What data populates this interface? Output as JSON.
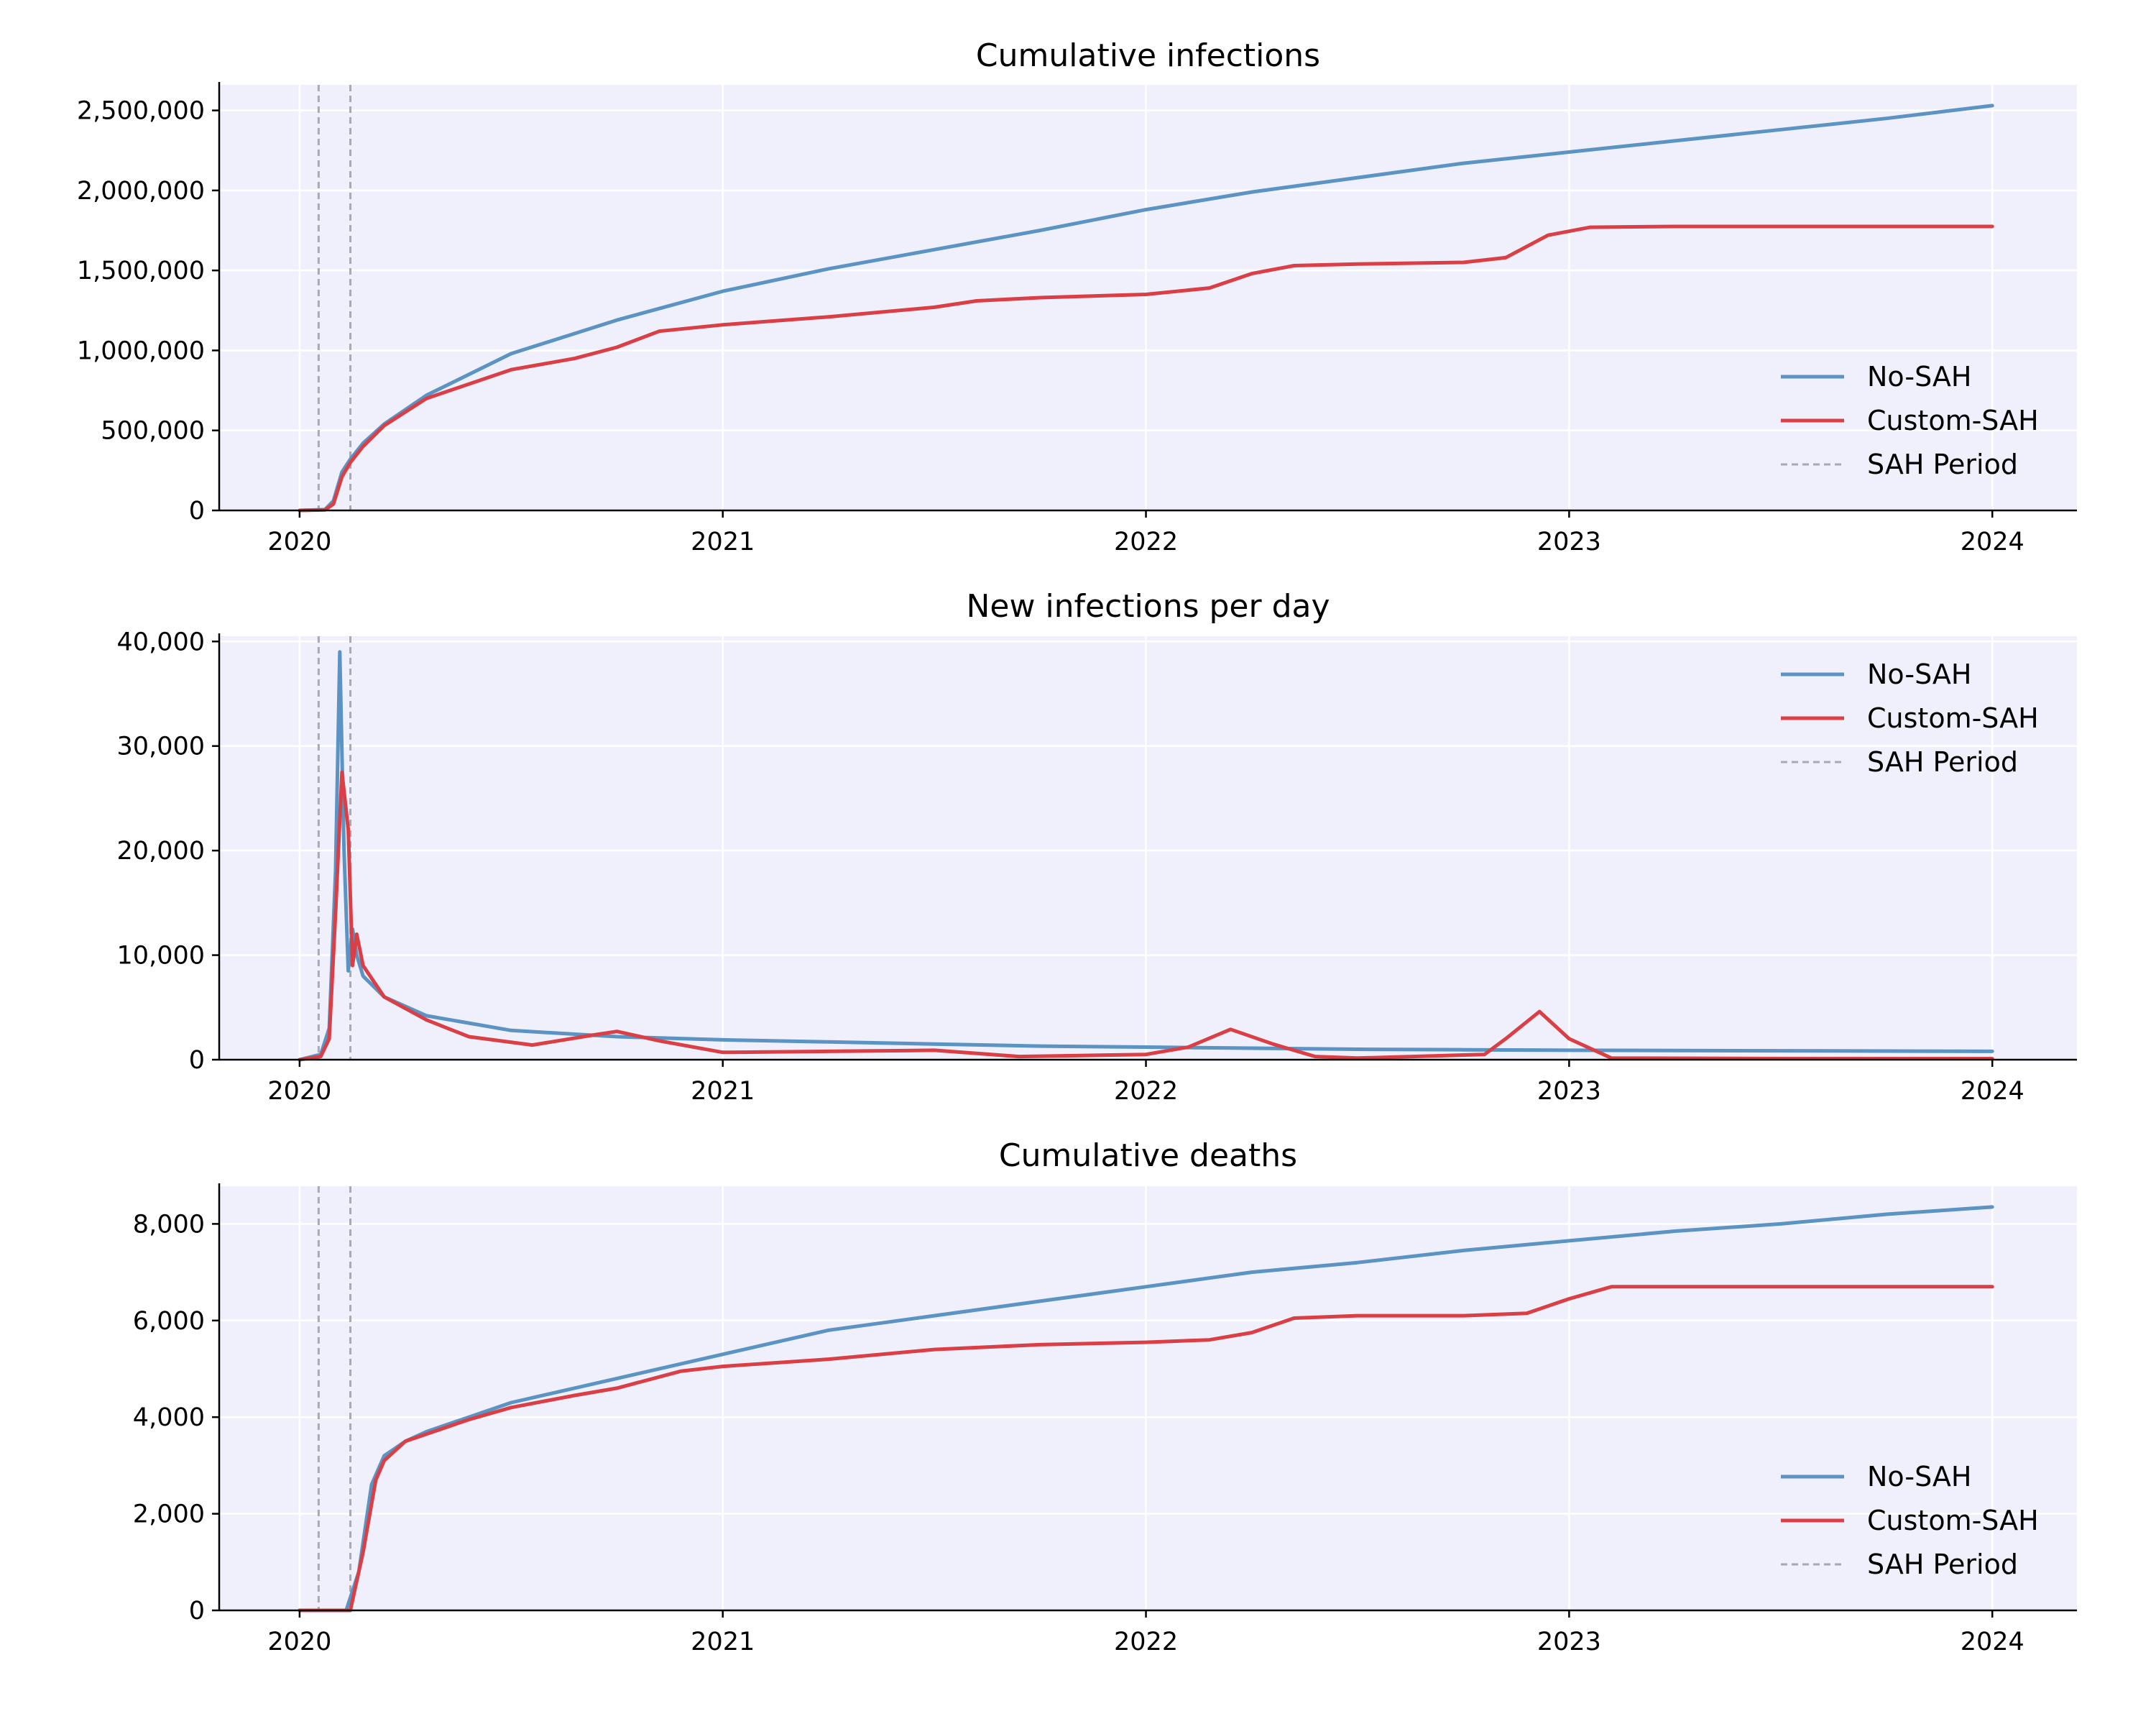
{
  "figure": {
    "background": "#ffffff",
    "panel_background": "#f0f0fc",
    "grid_color": "#ffffff",
    "colors": {
      "No-SAH": "#5b93c2",
      "Custom-SAH": "#da3f46",
      "SAH Period": "#a9a9b4"
    }
  },
  "chart_data": [
    {
      "type": "line",
      "title": "Cumulative infections",
      "xlabel": "",
      "ylabel": "",
      "x_ticks": [
        2020,
        2021,
        2022,
        2023,
        2024
      ],
      "x_tick_labels": [
        "2020",
        "2021",
        "2022",
        "2023",
        "2024"
      ],
      "y_ticks": [
        0,
        500000,
        1000000,
        1500000,
        2000000,
        2500000
      ],
      "y_tick_labels": [
        "0",
        "500,000",
        "1,000,000",
        "1,500,000",
        "2,000,000",
        "2,500,000"
      ],
      "xlim": [
        2019.81,
        2024.2
      ],
      "ylim": [
        0,
        2660000
      ],
      "grid": true,
      "legend_position": "lower-right",
      "sah_period": [
        2020.045,
        2020.12
      ],
      "series": [
        {
          "name": "No-SAH",
          "x": [
            2020.0,
            2020.06,
            2020.08,
            2020.1,
            2020.12,
            2020.15,
            2020.2,
            2020.3,
            2020.5,
            2020.75,
            2021.0,
            2021.25,
            2021.5,
            2021.75,
            2022.0,
            2022.25,
            2022.5,
            2022.75,
            2023.0,
            2023.25,
            2023.5,
            2023.75,
            2024.0
          ],
          "y": [
            0,
            5000,
            60000,
            240000,
            320000,
            420000,
            540000,
            720000,
            980000,
            1190000,
            1370000,
            1510000,
            1630000,
            1750000,
            1880000,
            1990000,
            2080000,
            2170000,
            2240000,
            2310000,
            2380000,
            2450000,
            2530000
          ]
        },
        {
          "name": "Custom-SAH",
          "x": [
            2020.0,
            2020.06,
            2020.08,
            2020.1,
            2020.12,
            2020.15,
            2020.2,
            2020.3,
            2020.5,
            2020.65,
            2020.75,
            2020.85,
            2021.0,
            2021.25,
            2021.5,
            2021.6,
            2021.75,
            2022.0,
            2022.15,
            2022.25,
            2022.35,
            2022.5,
            2022.75,
            2022.85,
            2022.95,
            2023.05,
            2023.25,
            2023.5,
            2024.0
          ],
          "y": [
            0,
            3000,
            40000,
            210000,
            300000,
            400000,
            530000,
            700000,
            880000,
            950000,
            1020000,
            1120000,
            1160000,
            1210000,
            1270000,
            1310000,
            1330000,
            1350000,
            1390000,
            1480000,
            1530000,
            1540000,
            1550000,
            1580000,
            1720000,
            1770000,
            1775000,
            1775000,
            1775000
          ]
        }
      ]
    },
    {
      "type": "line",
      "title": "New infections per day",
      "xlabel": "",
      "ylabel": "",
      "x_ticks": [
        2020,
        2021,
        2022,
        2023,
        2024
      ],
      "x_tick_labels": [
        "2020",
        "2021",
        "2022",
        "2023",
        "2024"
      ],
      "y_ticks": [
        0,
        10000,
        20000,
        30000,
        40000
      ],
      "y_tick_labels": [
        "0",
        "10,000",
        "20,000",
        "30,000",
        "40,000"
      ],
      "xlim": [
        2019.81,
        2024.2
      ],
      "ylim": [
        0,
        40500
      ],
      "grid": true,
      "legend_position": "upper-right",
      "sah_period": [
        2020.045,
        2020.12
      ],
      "series": [
        {
          "name": "No-SAH",
          "x": [
            2020.0,
            2020.05,
            2020.07,
            2020.085,
            2020.095,
            2020.105,
            2020.115,
            2020.125,
            2020.135,
            2020.15,
            2020.2,
            2020.3,
            2020.5,
            2020.75,
            2021.0,
            2021.25,
            2021.5,
            2021.75,
            2022.0,
            2022.25,
            2022.5,
            2022.75,
            2023.0,
            2023.5,
            2024.0
          ],
          "y": [
            0,
            500,
            3000,
            18000,
            39000,
            20000,
            8500,
            12500,
            10000,
            8000,
            6000,
            4200,
            2800,
            2200,
            1900,
            1700,
            1500,
            1300,
            1200,
            1100,
            1000,
            950,
            900,
            850,
            800
          ]
        },
        {
          "name": "Custom-SAH",
          "x": [
            2020.0,
            2020.05,
            2020.07,
            2020.085,
            2020.1,
            2020.115,
            2020.125,
            2020.135,
            2020.15,
            2020.2,
            2020.3,
            2020.4,
            2020.55,
            2020.7,
            2020.75,
            2020.85,
            2021.0,
            2021.25,
            2021.5,
            2021.7,
            2022.0,
            2022.1,
            2022.2,
            2022.3,
            2022.4,
            2022.5,
            2022.8,
            2022.85,
            2022.93,
            2023.0,
            2023.1,
            2023.5,
            2024.0
          ],
          "y": [
            0,
            300,
            2000,
            14000,
            27500,
            22000,
            9000,
            12000,
            9000,
            6000,
            3800,
            2200,
            1400,
            2400,
            2700,
            1800,
            700,
            800,
            900,
            300,
            500,
            1200,
            2900,
            1500,
            300,
            150,
            500,
            2000,
            4600,
            2000,
            150,
            100,
            100
          ]
        }
      ]
    },
    {
      "type": "line",
      "title": "Cumulative deaths",
      "xlabel": "",
      "ylabel": "",
      "x_ticks": [
        2020,
        2021,
        2022,
        2023,
        2024
      ],
      "x_tick_labels": [
        "2020",
        "2021",
        "2022",
        "2023",
        "2024"
      ],
      "y_ticks": [
        0,
        2000,
        4000,
        6000,
        8000
      ],
      "y_tick_labels": [
        "0",
        "2,000",
        "4,000",
        "6,000",
        "8,000"
      ],
      "xlim": [
        2019.81,
        2024.2
      ],
      "ylim": [
        0,
        8780
      ],
      "grid": true,
      "legend_position": "lower-right",
      "sah_period": [
        2020.045,
        2020.12
      ],
      "series": [
        {
          "name": "No-SAH",
          "x": [
            2020.0,
            2020.11,
            2020.14,
            2020.17,
            2020.2,
            2020.25,
            2020.3,
            2020.4,
            2020.5,
            2020.75,
            2021.0,
            2021.25,
            2021.5,
            2021.75,
            2022.0,
            2022.25,
            2022.5,
            2022.75,
            2023.0,
            2023.25,
            2023.5,
            2023.75,
            2024.0
          ],
          "y": [
            0,
            0,
            800,
            2600,
            3200,
            3500,
            3700,
            4000,
            4300,
            4800,
            5300,
            5800,
            6100,
            6400,
            6700,
            7000,
            7200,
            7450,
            7650,
            7850,
            8000,
            8200,
            8350
          ]
        },
        {
          "name": "Custom-SAH",
          "x": [
            2020.0,
            2020.12,
            2020.15,
            2020.18,
            2020.2,
            2020.25,
            2020.3,
            2020.4,
            2020.5,
            2020.65,
            2020.75,
            2020.9,
            2021.0,
            2021.25,
            2021.5,
            2021.75,
            2022.0,
            2022.15,
            2022.25,
            2022.35,
            2022.5,
            2022.75,
            2022.9,
            2023.0,
            2023.1,
            2023.5,
            2024.0
          ],
          "y": [
            0,
            0,
            1200,
            2700,
            3100,
            3500,
            3650,
            3950,
            4200,
            4450,
            4600,
            4950,
            5050,
            5200,
            5400,
            5500,
            5550,
            5600,
            5750,
            6050,
            6100,
            6100,
            6150,
            6450,
            6700,
            6700,
            6700
          ]
        }
      ]
    }
  ]
}
